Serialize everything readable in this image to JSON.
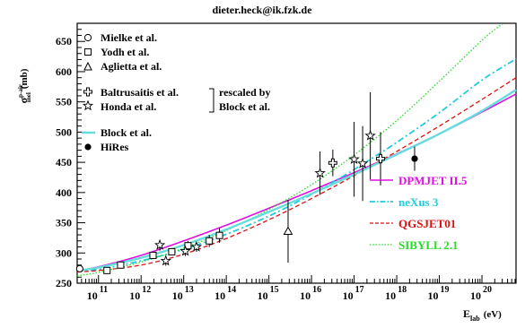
{
  "chart_data": {
    "type": "scatter",
    "title": "dieter.heck@ik.fzk.de",
    "ylabel_main": "σ",
    "ylabel_sup": "p-air",
    "ylabel_sub": "inel",
    "ylabel_unit": "(mb)",
    "xlabel_main": "E",
    "xlabel_sub": "lab",
    "xlabel_unit": "(eV)",
    "x_scale": "log",
    "xlim_log10": [
      10.5,
      20.8
    ],
    "ylim": [
      250,
      680
    ],
    "x_ticks": [
      {
        "base": "10",
        "exp": "11",
        "log": 11
      },
      {
        "base": "10",
        "exp": "12",
        "log": 12
      },
      {
        "base": "10",
        "exp": "13",
        "log": 13
      },
      {
        "base": "10",
        "exp": "14",
        "log": 14
      },
      {
        "base": "10",
        "exp": "15",
        "log": 15
      },
      {
        "base": "10",
        "exp": "16",
        "log": 16
      },
      {
        "base": "10",
        "exp": "17",
        "log": 17
      },
      {
        "base": "10",
        "exp": "18",
        "log": 18
      },
      {
        "base": "10",
        "exp": "19",
        "log": 19
      },
      {
        "base": "10",
        "exp": "20",
        "log": 20
      }
    ],
    "y_ticks": [
      {
        "label": "250",
        "value": 250
      },
      {
        "label": "300",
        "value": 300
      },
      {
        "label": "350",
        "value": 350
      },
      {
        "label": "400",
        "value": 400
      },
      {
        "label": "450",
        "value": 450
      },
      {
        "label": "500",
        "value": 500
      },
      {
        "label": "550",
        "value": 550
      },
      {
        "label": "600",
        "value": 600
      },
      {
        "label": "650",
        "value": 650
      }
    ],
    "experiments": [
      {
        "name": "Mielke et al.",
        "marker": "open-circle",
        "points": [
          {
            "x": 10.56,
            "y": 274,
            "err": 3
          }
        ]
      },
      {
        "name": "Yodh et al.",
        "marker": "open-square",
        "points": [
          {
            "x": 11.2,
            "y": 271,
            "err": 4
          },
          {
            "x": 11.52,
            "y": 280,
            "err": 4
          },
          {
            "x": 12.28,
            "y": 296,
            "err": 6
          },
          {
            "x": 12.72,
            "y": 302,
            "err": 6
          },
          {
            "x": 13.1,
            "y": 312,
            "err": 8
          },
          {
            "x": 13.6,
            "y": 320,
            "err": 10
          },
          {
            "x": 13.84,
            "y": 329,
            "err": 12
          }
        ]
      },
      {
        "name": "Aglietta et al.",
        "marker": "open-triangle",
        "points": [
          {
            "x": 15.45,
            "y": 336,
            "err": 52
          }
        ]
      },
      {
        "name": "Baltrusaitis et al.",
        "marker": "open-cross",
        "points": [
          {
            "x": 16.5,
            "y": 449,
            "err": 22
          },
          {
            "x": 17.62,
            "y": 456,
            "err": 44
          }
        ]
      },
      {
        "name": "Honda et al.",
        "marker": "open-star",
        "points": [
          {
            "x": 12.44,
            "y": 313,
            "err": 9
          },
          {
            "x": 12.58,
            "y": 287,
            "err": 8
          },
          {
            "x": 13.04,
            "y": 303,
            "err": 8
          },
          {
            "x": 13.3,
            "y": 310,
            "err": 8
          },
          {
            "x": 16.2,
            "y": 432,
            "err": 36
          },
          {
            "x": 17.0,
            "y": 455,
            "err": 62
          },
          {
            "x": 17.2,
            "y": 448,
            "err": 62
          },
          {
            "x": 17.38,
            "y": 494,
            "err": 72
          }
        ]
      },
      {
        "name": "HiRes",
        "marker": "filled-circle",
        "points": [
          {
            "x": 18.42,
            "y": 456,
            "err": 20
          }
        ]
      }
    ],
    "rescale_note_line1": "rescaled by",
    "rescale_note_line2": "Block et al.",
    "block_curve": {
      "name": "Block et al.",
      "color": "#66dddd",
      "x": [
        10.5,
        11,
        12,
        13,
        14,
        15,
        16,
        17,
        18,
        19,
        20,
        20.8
      ],
      "y": [
        271,
        276,
        292,
        313,
        339,
        368,
        398,
        430,
        463,
        497,
        535,
        570
      ]
    },
    "model_curves": [
      {
        "name": "DPMJET II.5",
        "color": "#dd11dd",
        "dash": "solid",
        "x": [
          10.5,
          11,
          12,
          13,
          14,
          15,
          16,
          17,
          18,
          19,
          20,
          20.8
        ],
        "y": [
          271,
          277,
          296,
          320,
          346,
          374,
          403,
          433,
          464,
          497,
          533,
          563
        ]
      },
      {
        "name": "neXus 3",
        "color": "#22ccdd",
        "dash": "dashdot",
        "x": [
          10.5,
          11,
          12,
          13,
          14,
          15,
          16,
          17,
          18,
          19,
          20,
          20.8
        ],
        "y": [
          270,
          273,
          287,
          306,
          331,
          361,
          397,
          438,
          483,
          532,
          586,
          621
        ]
      },
      {
        "name": "QGSJET01",
        "color": "#dd1111",
        "dash": "dashed",
        "x": [
          10.5,
          11,
          12,
          13,
          14,
          15,
          16,
          17,
          18,
          19,
          20,
          20.8
        ],
        "y": [
          269,
          271,
          280,
          298,
          324,
          355,
          390,
          428,
          468,
          510,
          554,
          590
        ]
      },
      {
        "name": "SIBYLL 2.1",
        "color": "#22dd22",
        "dash": "dotted",
        "x": [
          10.5,
          11,
          12,
          13,
          14,
          15,
          16,
          17,
          18,
          19,
          20,
          20.5
        ],
        "y": [
          262,
          268,
          285,
          308,
          337,
          372,
          413,
          462,
          519,
          584,
          652,
          680
        ]
      }
    ]
  }
}
